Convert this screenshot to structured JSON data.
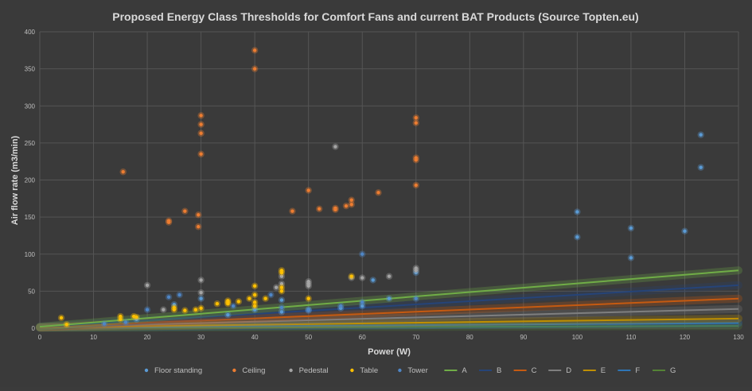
{
  "chart_data": {
    "type": "scatter",
    "title": "Proposed Energy Class Thresholds for Comfort Fans and current BAT Products (Source Topten.eu)",
    "xlabel": "Power (W)",
    "ylabel": "Air flow rate (m3/min)",
    "xlim": [
      0,
      130
    ],
    "ylim": [
      0,
      400
    ],
    "xticks": [
      0,
      10,
      20,
      30,
      40,
      50,
      60,
      70,
      80,
      90,
      100,
      110,
      120,
      130
    ],
    "yticks": [
      0,
      50,
      100,
      150,
      200,
      250,
      300,
      350,
      400
    ],
    "grid": true,
    "legend_position": "bottom",
    "series": [
      {
        "name": "Floor standing",
        "kind": "scatter",
        "color": "#5b9bd5",
        "points": [
          [
            35,
            18
          ],
          [
            40,
            25
          ],
          [
            45,
            22
          ],
          [
            45,
            38
          ],
          [
            50,
            25
          ],
          [
            56,
            27
          ],
          [
            60,
            30
          ],
          [
            62,
            65
          ],
          [
            65,
            40
          ],
          [
            70,
            75
          ],
          [
            100,
            157
          ],
          [
            100,
            123
          ],
          [
            110,
            135
          ],
          [
            110,
            95
          ],
          [
            120,
            131
          ],
          [
            123,
            261
          ],
          [
            123,
            217
          ],
          [
            30,
            40
          ],
          [
            25,
            32
          ],
          [
            18,
            12
          ]
        ]
      },
      {
        "name": "Ceiling",
        "kind": "scatter",
        "color": "#ed7d31",
        "points": [
          [
            15.5,
            211
          ],
          [
            24,
            145
          ],
          [
            24,
            143
          ],
          [
            27,
            158
          ],
          [
            29.5,
            153
          ],
          [
            29.5,
            137
          ],
          [
            30,
            287
          ],
          [
            30,
            275
          ],
          [
            30,
            263
          ],
          [
            30,
            235
          ],
          [
            40,
            375
          ],
          [
            40,
            350
          ],
          [
            47,
            158
          ],
          [
            50,
            186
          ],
          [
            52,
            161
          ],
          [
            55,
            160
          ],
          [
            55,
            162
          ],
          [
            57,
            165
          ],
          [
            58,
            173
          ],
          [
            58,
            167
          ],
          [
            63,
            183
          ],
          [
            70,
            284
          ],
          [
            70,
            277
          ],
          [
            70,
            230
          ],
          [
            70,
            227
          ],
          [
            70,
            193
          ]
        ]
      },
      {
        "name": "Pedestal",
        "kind": "scatter",
        "color": "#a5a5a5",
        "points": [
          [
            20,
            58
          ],
          [
            30,
            65
          ],
          [
            30,
            48
          ],
          [
            45,
            70
          ],
          [
            45,
            60
          ],
          [
            50,
            63
          ],
          [
            50,
            60
          ],
          [
            50,
            57
          ],
          [
            55,
            245
          ],
          [
            58,
            68
          ],
          [
            60,
            68
          ],
          [
            65,
            70
          ],
          [
            70,
            81
          ],
          [
            70,
            78
          ],
          [
            44,
            55
          ],
          [
            23,
            25
          ]
        ]
      },
      {
        "name": "Table",
        "kind": "scatter",
        "color": "#ffc000",
        "points": [
          [
            4,
            14
          ],
          [
            5,
            5
          ],
          [
            15,
            16
          ],
          [
            15,
            12
          ],
          [
            17.5,
            16
          ],
          [
            18,
            15
          ],
          [
            25,
            28
          ],
          [
            25,
            25
          ],
          [
            27,
            24
          ],
          [
            29,
            25
          ],
          [
            30,
            27
          ],
          [
            33,
            33
          ],
          [
            35,
            37
          ],
          [
            35,
            35
          ],
          [
            35,
            33
          ],
          [
            37,
            36
          ],
          [
            39,
            40
          ],
          [
            40,
            57
          ],
          [
            40,
            45
          ],
          [
            40,
            35
          ],
          [
            40,
            30
          ],
          [
            42,
            40
          ],
          [
            45,
            78
          ],
          [
            45,
            75
          ],
          [
            45,
            55
          ],
          [
            45,
            50
          ],
          [
            50,
            40
          ],
          [
            58,
            70
          ]
        ]
      },
      {
        "name": "Tower",
        "kind": "scatter",
        "color": "#4f86c6",
        "points": [
          [
            12,
            6
          ],
          [
            16,
            8
          ],
          [
            20,
            25
          ],
          [
            24,
            42
          ],
          [
            26,
            45
          ],
          [
            36,
            30
          ],
          [
            45,
            28
          ],
          [
            50,
            24
          ],
          [
            56,
            30
          ],
          [
            60,
            100
          ],
          [
            60,
            35
          ],
          [
            70,
            40
          ],
          [
            43,
            45
          ]
        ]
      },
      {
        "name": "A",
        "kind": "line",
        "color": "#70ad47",
        "x": [
          0,
          130
        ],
        "y": [
          2,
          78
        ]
      },
      {
        "name": "B",
        "kind": "line",
        "color": "#264478",
        "x": [
          0,
          130
        ],
        "y": [
          2,
          58
        ]
      },
      {
        "name": "C",
        "kind": "line",
        "color": "#c55a11",
        "x": [
          0,
          130
        ],
        "y": [
          1.5,
          40
        ]
      },
      {
        "name": "D",
        "kind": "line",
        "color": "#7f7f7f",
        "x": [
          0,
          130
        ],
        "y": [
          1.2,
          26
        ]
      },
      {
        "name": "E",
        "kind": "line",
        "color": "#bf8f00",
        "x": [
          0,
          130
        ],
        "y": [
          1,
          13
        ]
      },
      {
        "name": "F",
        "kind": "line",
        "color": "#2e75b6",
        "x": [
          0,
          130
        ],
        "y": [
          0.8,
          7
        ]
      },
      {
        "name": "G",
        "kind": "line",
        "color": "#548235",
        "x": [
          0,
          130
        ],
        "y": [
          0.5,
          3
        ]
      }
    ]
  }
}
